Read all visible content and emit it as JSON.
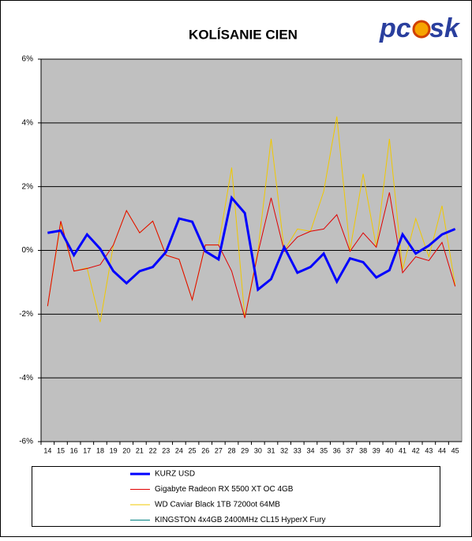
{
  "logo": {
    "left": "pc",
    "right": "sk"
  },
  "chart_data": {
    "type": "line",
    "title": "KOLÍSANIE CIEN",
    "categories": [
      14,
      15,
      16,
      17,
      18,
      19,
      20,
      21,
      22,
      23,
      24,
      25,
      26,
      27,
      28,
      29,
      30,
      31,
      32,
      33,
      34,
      35,
      36,
      37,
      38,
      39,
      40,
      41,
      42,
      43,
      44,
      45
    ],
    "ylim": [
      -6,
      6
    ],
    "yticks": [
      {
        "value": -6,
        "label": "-6%"
      },
      {
        "value": -4,
        "label": "-4%"
      },
      {
        "value": -2,
        "label": "-2%"
      },
      {
        "value": 0,
        "label": "0%"
      },
      {
        "value": 2,
        "label": "2%"
      },
      {
        "value": 4,
        "label": "4%"
      },
      {
        "value": 6,
        "label": "6%"
      }
    ],
    "grid": true,
    "series": [
      {
        "name": "KURZ USD",
        "color": "#0000ff",
        "values": [
          0.55,
          0.62,
          -0.15,
          0.5,
          0.05,
          -0.65,
          -1.03,
          -0.65,
          -0.52,
          -0.05,
          1.0,
          0.9,
          -0.03,
          -0.28,
          1.65,
          1.17,
          -1.23,
          -0.9,
          0.1,
          -0.7,
          -0.52,
          -0.1,
          -0.98,
          -0.25,
          -0.37,
          -0.85,
          -0.62,
          0.5,
          -0.1,
          0.15,
          0.5,
          0.67
        ]
      },
      {
        "name": "Gigabyte Radeon RX 5500 XT OC 4GB",
        "color": "#e00000",
        "values": [
          -1.75,
          0.92,
          -0.65,
          -0.57,
          -0.45,
          0.17,
          1.25,
          0.55,
          0.92,
          -0.15,
          -0.28,
          -1.55,
          0.17,
          0.17,
          -0.65,
          -2.12,
          -0.08,
          1.65,
          -0.03,
          0.42,
          0.6,
          0.67,
          1.12,
          -0.03,
          0.55,
          0.1,
          1.82,
          -0.7,
          -0.2,
          -0.32,
          0.25,
          -1.13
        ]
      },
      {
        "name": "WD Caviar Black 1TB 7200ot 64MB",
        "color": "#f0c800",
        "values": [
          -1.75,
          0.85,
          -0.65,
          -0.55,
          -2.25,
          0.17,
          1.25,
          0.55,
          0.92,
          -0.15,
          -0.28,
          -1.55,
          0.17,
          0.17,
          2.6,
          -2.12,
          0.0,
          3.5,
          0.0,
          0.67,
          0.6,
          1.85,
          4.2,
          0.0,
          2.4,
          0.1,
          3.5,
          -0.6,
          1.0,
          -0.2,
          1.4,
          -1.1
        ]
      },
      {
        "name": "KINGSTON 4x4GB 2400MHz CL15 HyperX Fury",
        "color": "#008080",
        "values": [
          null,
          null,
          null,
          null,
          null,
          null,
          null,
          null,
          null,
          null,
          null,
          null,
          null,
          null,
          null,
          null,
          null,
          null,
          null,
          null,
          null,
          null,
          null,
          null,
          null,
          null,
          null,
          null,
          null,
          null,
          null,
          null
        ]
      }
    ]
  }
}
